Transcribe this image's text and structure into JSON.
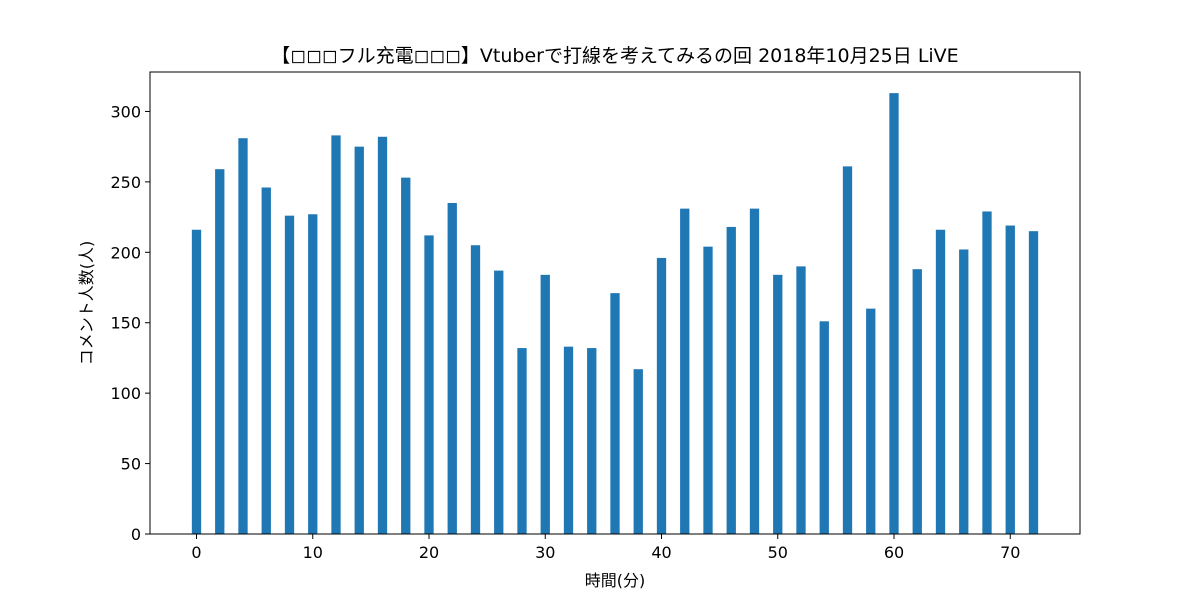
{
  "chart_data": {
    "type": "bar",
    "title": "【◻◻◻フル充電◻◻◻】Vtuberで打線を考えてみるの回 2018年10月25日 LiVE",
    "xlabel": "時間(分)",
    "ylabel": "コメント人数(人)",
    "xlim": [
      -4,
      76
    ],
    "ylim": [
      0,
      328
    ],
    "xticks": [
      0,
      10,
      20,
      30,
      40,
      50,
      60,
      70
    ],
    "yticks": [
      0,
      50,
      100,
      150,
      200,
      250,
      300
    ],
    "grid": false,
    "bar_color": "#1f77b4",
    "x": [
      0,
      2,
      4,
      6,
      8,
      10,
      12,
      14,
      16,
      18,
      20,
      22,
      24,
      26,
      28,
      30,
      32,
      34,
      36,
      38,
      40,
      42,
      44,
      46,
      48,
      50,
      52,
      54,
      56,
      58,
      60,
      62,
      64,
      66,
      68,
      70,
      72
    ],
    "values": [
      216,
      259,
      281,
      246,
      226,
      227,
      283,
      275,
      282,
      253,
      212,
      235,
      205,
      187,
      132,
      184,
      133,
      132,
      171,
      117,
      196,
      231,
      204,
      218,
      231,
      184,
      190,
      151,
      261,
      160,
      313,
      188,
      216,
      202,
      229,
      219,
      215
    ]
  }
}
